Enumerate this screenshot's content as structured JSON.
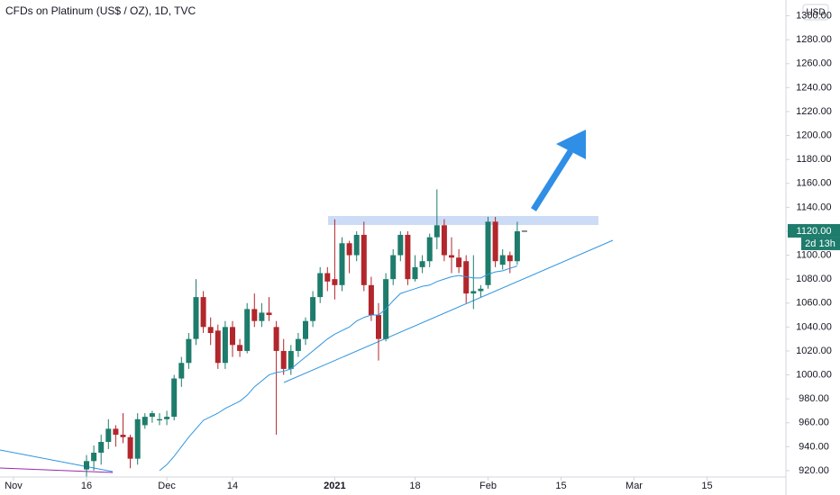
{
  "chart_data": {
    "type": "candlestick",
    "title": "CFDs on Platinum (US$ / OZ), 1D, TVC",
    "currency": "USD",
    "last_price_label": "1120.00",
    "countdown": "2d 13h",
    "up_color": "#1e7c6c",
    "down_color": "#b2262c",
    "x": [
      0,
      1,
      2,
      3,
      4,
      5,
      6,
      7,
      8,
      9,
      10,
      11,
      12,
      13,
      14,
      15,
      16,
      17,
      18,
      19,
      20,
      21,
      22,
      23,
      24,
      25,
      26,
      27,
      28,
      29,
      30,
      31,
      32,
      33,
      34,
      35,
      36,
      37,
      38,
      39,
      40,
      41,
      42,
      43,
      44,
      45,
      46,
      47,
      48,
      49,
      50,
      51,
      52,
      53,
      54,
      55,
      56,
      57,
      58,
      59
    ],
    "open": [
      921,
      928,
      935,
      944,
      955,
      950,
      948,
      930,
      958,
      965,
      962,
      963,
      965,
      997,
      1010,
      1030,
      1065,
      1040,
      1037,
      1010,
      1040,
      1025,
      1020,
      1055,
      1045,
      1052,
      1040,
      1020,
      1005,
      1020,
      1030,
      1045,
      1065,
      1085,
      1080,
      1075,
      1110,
      1100,
      1117,
      1075,
      1050,
      1030,
      1080,
      1100,
      1117,
      1080,
      1090,
      1095,
      1115,
      1125,
      1100,
      1098,
      1095,
      1068,
      1070,
      1075,
      1128,
      1092,
      1100,
      1095
    ],
    "high": [
      933,
      941,
      950,
      963,
      958,
      968,
      950,
      968,
      968,
      970,
      968,
      970,
      1000,
      1015,
      1035,
      1080,
      1070,
      1048,
      1042,
      1045,
      1045,
      1030,
      1060,
      1068,
      1060,
      1065,
      1045,
      1030,
      1025,
      1035,
      1048,
      1070,
      1090,
      1090,
      1130,
      1115,
      1112,
      1120,
      1128,
      1082,
      1060,
      1085,
      1105,
      1120,
      1120,
      1100,
      1100,
      1118,
      1155,
      1130,
      1115,
      1105,
      1100,
      1100,
      1075,
      1132,
      1132,
      1105,
      1103,
      1128
    ],
    "low": [
      915,
      920,
      925,
      938,
      940,
      943,
      922,
      925,
      955,
      960,
      958,
      958,
      962,
      990,
      1005,
      1025,
      1035,
      1025,
      1005,
      1005,
      1015,
      1015,
      1018,
      1040,
      1040,
      1045,
      950,
      1000,
      1000,
      1015,
      1025,
      1040,
      1060,
      1070,
      1063,
      1070,
      1085,
      1095,
      1070,
      1045,
      1012,
      1028,
      1075,
      1095,
      1075,
      1078,
      1085,
      1090,
      1105,
      1095,
      1085,
      1085,
      1060,
      1055,
      1065,
      1072,
      1090,
      1088,
      1085,
      1092
    ],
    "close": [
      928,
      935,
      944,
      955,
      950,
      948,
      930,
      963,
      965,
      968,
      963,
      965,
      997,
      1010,
      1030,
      1065,
      1040,
      1035,
      1010,
      1040,
      1025,
      1020,
      1055,
      1045,
      1052,
      1050,
      1020,
      1005,
      1020,
      1030,
      1045,
      1065,
      1085,
      1078,
      1075,
      1110,
      1100,
      1117,
      1075,
      1050,
      1030,
      1080,
      1100,
      1117,
      1080,
      1090,
      1095,
      1115,
      1125,
      1100,
      1098,
      1090,
      1068,
      1070,
      1072,
      1128,
      1095,
      1100,
      1095,
      1120
    ],
    "ma": {
      "color": "#2f95e0",
      "values": [
        null,
        null,
        null,
        null,
        null,
        null,
        null,
        null,
        null,
        null,
        920,
        925,
        932,
        940,
        948,
        955,
        962,
        965,
        968,
        972,
        975,
        978,
        983,
        990,
        995,
        1000,
        1002,
        1003,
        1005,
        1010,
        1015,
        1020,
        1025,
        1030,
        1034,
        1037,
        1040,
        1045,
        1048,
        1050,
        1050,
        1055,
        1062,
        1068,
        1070,
        1072,
        1074,
        1075,
        1078,
        1080,
        1082,
        1083,
        1082,
        1081,
        1081,
        1084,
        1086,
        1087,
        1089,
        1091
      ]
    },
    "xlim": [
      -11.85,
      95.8
    ],
    "ylim": [
      914.7,
      1313.2
    ],
    "xticks": [
      {
        "value": -10,
        "label": "Nov"
      },
      {
        "value": 0,
        "label": "16"
      },
      {
        "value": 11,
        "label": "Dec"
      },
      {
        "value": 20,
        "label": "14"
      },
      {
        "value": 34,
        "label": "2021"
      },
      {
        "value": 45,
        "label": "18"
      },
      {
        "value": 55,
        "label": "Feb"
      },
      {
        "value": 65,
        "label": "15"
      },
      {
        "value": 75,
        "label": "Mar"
      },
      {
        "value": 85,
        "label": "15"
      }
    ],
    "yticks": [
      {
        "value": 920,
        "label": "920.00"
      },
      {
        "value": 940,
        "label": "940.00"
      },
      {
        "value": 960,
        "label": "960.00"
      },
      {
        "value": 980,
        "label": "980.00"
      },
      {
        "value": 1000,
        "label": "1000.00"
      },
      {
        "value": 1020,
        "label": "1020.00"
      },
      {
        "value": 1040,
        "label": "1040.00"
      },
      {
        "value": 1060,
        "label": "1060.00"
      },
      {
        "value": 1080,
        "label": "1080.00"
      },
      {
        "value": 1100,
        "label": "1100.00"
      },
      {
        "value": 1120,
        "label": "1120.00"
      },
      {
        "value": 1140,
        "label": "1140.00"
      },
      {
        "value": 1160,
        "label": "1160.00"
      },
      {
        "value": 1180,
        "label": "1180.00"
      },
      {
        "value": 1200,
        "label": "1200.00"
      },
      {
        "value": 1220,
        "label": "1220.00"
      },
      {
        "value": 1240,
        "label": "1240.00"
      },
      {
        "value": 1260,
        "label": "1260.00"
      },
      {
        "value": 1280,
        "label": "1280.00"
      },
      {
        "value": 1300,
        "label": "1300.00"
      }
    ],
    "grid": false
  }
}
